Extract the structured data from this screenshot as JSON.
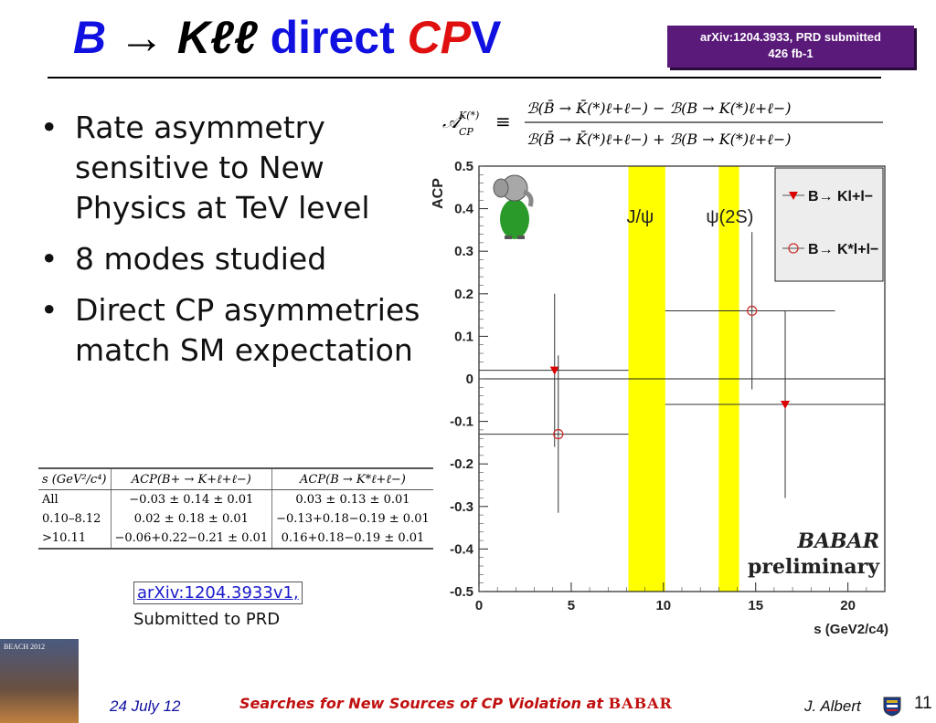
{
  "slide": {
    "title": {
      "b": "B",
      "arrow": "→",
      "kll": "Kℓℓ",
      "direct": "direct",
      "cp": "CP",
      "v": "V"
    },
    "reference_box": {
      "line1": "arXiv:1204.3933, PRD submitted",
      "line2": "426 fb-1"
    },
    "bullets": [
      "Rate asymmetry sensitive to New Physics at TeV level",
      "8 modes studied",
      "Direct CP asymmetries match SM expectation"
    ],
    "bullet_symbol": "•",
    "formula": {
      "lhs": "𝒜",
      "lhs_sup": "K(*)",
      "lhs_sub": "CP",
      "equiv": "≡",
      "numerator": "ℬ(B̄ → K̄(*)ℓ+ℓ−) − ℬ(B → K(*)ℓ+ℓ−)",
      "denominator": "ℬ(B̄ → K̄(*)ℓ+ℓ−) + ℬ(B → K(*)ℓ+ℓ−)"
    },
    "table": {
      "headers": [
        "s (GeV²/c⁴)",
        "ACP(B+ → K+ℓ+ℓ−)",
        "ACP(B → K*ℓ+ℓ−)"
      ],
      "rows": [
        [
          "All",
          "−0.03 ± 0.14 ± 0.01",
          "0.03 ± 0.13 ± 0.01"
        ],
        [
          "0.10–8.12",
          "0.02 ± 0.18 ± 0.01",
          "−0.13+0.18−0.19 ± 0.01"
        ],
        [
          ">10.11",
          "−0.06+0.22−0.21 ± 0.01",
          "0.16+0.18−0.19 ± 0.01"
        ]
      ]
    },
    "arxiv_link": "arXiv:1204.3933v1,",
    "submitted": "Submitted to PRD",
    "footer": {
      "image_caption": "BEACH 2012",
      "date": "24 July 12",
      "center": "Searches for New Sources of CP Violation at",
      "babar_logo": "BABAR",
      "author": "J. Albert",
      "page": "11"
    }
  },
  "chart_data": {
    "type": "scatter",
    "title": "",
    "ylabel": "ACP",
    "xlabel": "s (GeV2/c4)",
    "xlim": [
      0,
      22
    ],
    "ylim": [
      -0.5,
      0.5
    ],
    "x_ticks": [
      "0",
      "5",
      "10",
      "15",
      "20"
    ],
    "y_ticks": [
      "0.5",
      "0.4",
      "0.3",
      "0.2",
      "0.1",
      "0",
      "-0.1",
      "-0.2",
      "-0.3",
      "-0.4",
      "-0.5"
    ],
    "vetoes": [
      {
        "label": "J/ψ",
        "from": 8.1,
        "to": 10.1,
        "color": "#ffff00"
      },
      {
        "label": "ψ(2S)",
        "from": 13.0,
        "to": 14.1,
        "color": "#ffff00"
      }
    ],
    "series": [
      {
        "name": "B→ Kl+l−",
        "marker": "triangle-down",
        "color": "#dd0000",
        "points": [
          {
            "x": 4.1,
            "xerr_lo": 4.1,
            "xerr_hi": 4.0,
            "y": 0.02,
            "yerr": 0.18
          },
          {
            "x": 16.6,
            "xerr_lo": 6.5,
            "xerr_hi": 5.4,
            "y": -0.06,
            "yerr": 0.22
          }
        ]
      },
      {
        "name": "B→ K*l+l−",
        "marker": "circle-open",
        "color": "#cc3333",
        "points": [
          {
            "x": 4.3,
            "xerr_lo": 4.3,
            "xerr_hi": 3.8,
            "y": -0.13,
            "yerr": 0.185
          },
          {
            "x": 14.8,
            "xerr_lo": 4.7,
            "xerr_hi": 4.5,
            "y": 0.16,
            "yerr": 0.185
          }
        ]
      }
    ],
    "legend_position": "top-right",
    "watermark": [
      "BABAR",
      "preliminary"
    ]
  }
}
